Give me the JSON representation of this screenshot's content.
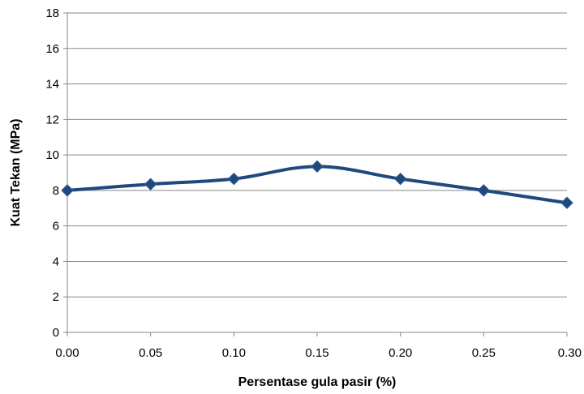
{
  "chart_data": {
    "type": "line",
    "title": "",
    "xlabel": "Persentase gula pasir (%)",
    "ylabel": "Kuat Tekan (MPa)",
    "x_tick_labels": [
      "0.00",
      "0.05",
      "0.10",
      "0.15",
      "0.20",
      "0.25",
      "0.30"
    ],
    "y_tick_labels": [
      "0",
      "2",
      "4",
      "6",
      "8",
      "10",
      "12",
      "14",
      "16",
      "18"
    ],
    "xlim": [
      0,
      0.3
    ],
    "ylim": [
      0,
      18
    ],
    "grid": true,
    "legend": "none",
    "series": [
      {
        "x": [
          0.0,
          0.05,
          0.1,
          0.15,
          0.2,
          0.25,
          0.3
        ],
        "values": [
          8.0,
          8.35,
          8.65,
          9.35,
          8.65,
          8.0,
          7.3
        ],
        "color": "#1f497d",
        "marker": "diamond"
      }
    ]
  }
}
